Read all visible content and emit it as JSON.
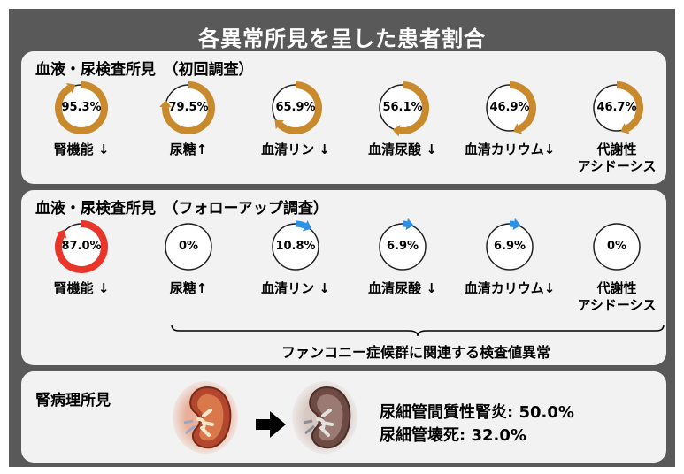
{
  "title": "各異常所見を呈した患者割合",
  "colors": {
    "initial": "#c98a2e",
    "followup_main": "#e8362a",
    "followup_small": "#2f8fe0",
    "ring": "#222222"
  },
  "initial": {
    "heading": "血液・尿検査所見　（初回調査）",
    "items": [
      {
        "pct": 95.3,
        "pct_label": "95.3%",
        "label": "腎機能 ↓"
      },
      {
        "pct": 79.5,
        "pct_label": "79.5%",
        "label": "尿糖↑"
      },
      {
        "pct": 65.9,
        "pct_label": "65.9%",
        "label": "血清リン ↓"
      },
      {
        "pct": 56.1,
        "pct_label": "56.1%",
        "label": "血清尿酸 ↓"
      },
      {
        "pct": 46.9,
        "pct_label": "46.9%",
        "label": "血清カリウム↓"
      },
      {
        "pct": 46.7,
        "pct_label": "46.7%",
        "label": "代謝性\nアシドーシス"
      }
    ]
  },
  "followup": {
    "heading": "血液・尿検査所見　（フォローアップ調査）",
    "items": [
      {
        "pct": 87.0,
        "pct_label": "87.0%",
        "label": "腎機能 ↓"
      },
      {
        "pct": 0,
        "pct_label": "0%",
        "label": "尿糖↑"
      },
      {
        "pct": 10.8,
        "pct_label": "10.8%",
        "label": "血清リン ↓"
      },
      {
        "pct": 6.9,
        "pct_label": "6.9%",
        "label": "血清尿酸 ↓"
      },
      {
        "pct": 6.9,
        "pct_label": "6.9%",
        "label": "血清カリウム↓"
      },
      {
        "pct": 0,
        "pct_label": "0%",
        "label": "代謝性\nアシドーシス"
      }
    ],
    "fanconi_label": "ファンコニー症候群に関連する検査値異常"
  },
  "pathology": {
    "heading": "腎病理所見",
    "line1": "尿細管間質性腎炎: 50.0%",
    "line2": "尿細管壊死: 32.0%"
  }
}
